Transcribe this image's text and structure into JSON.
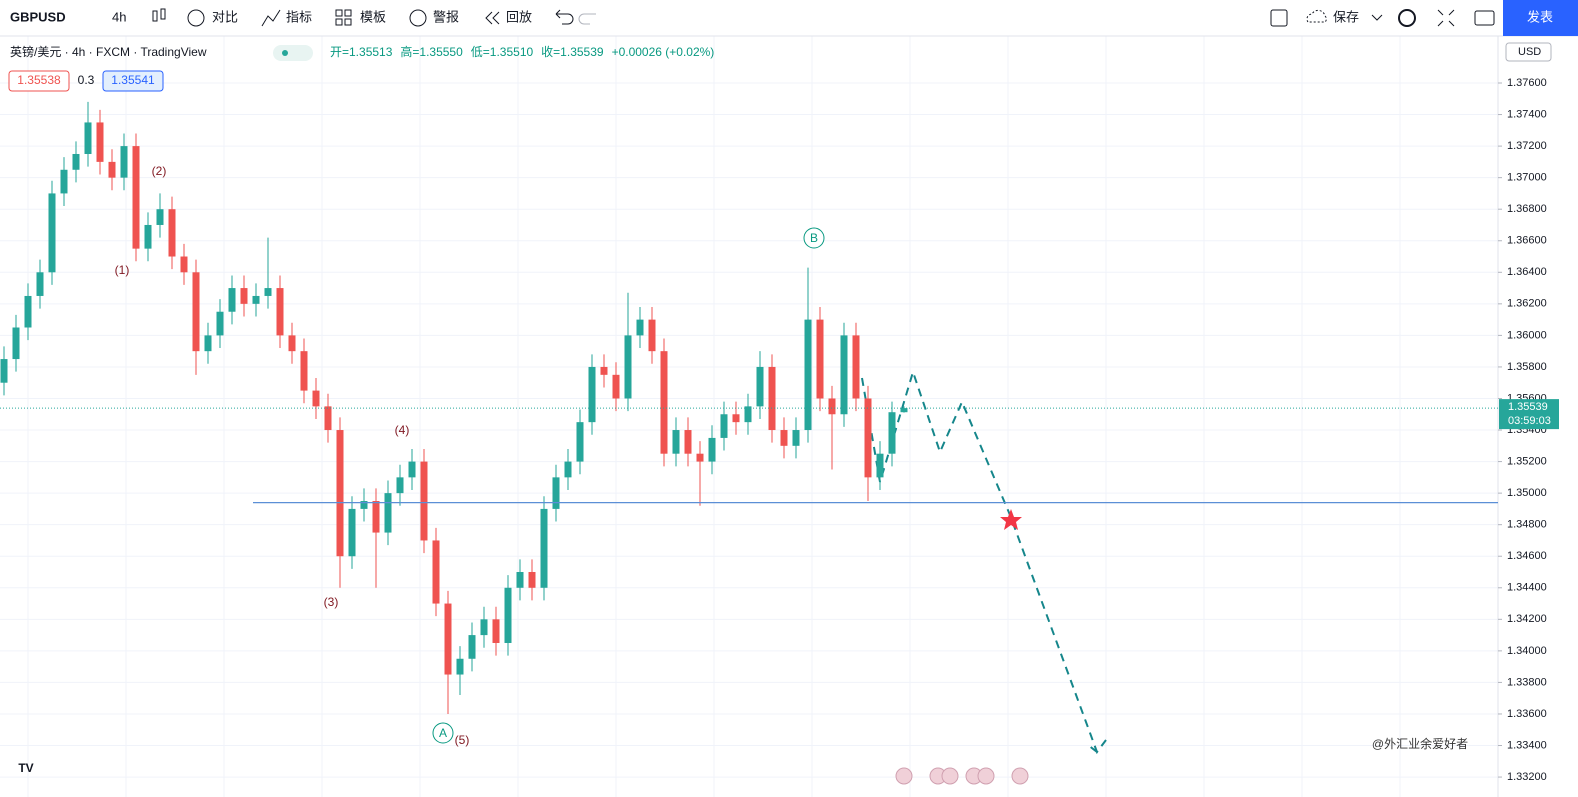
{
  "toolbar": {
    "symbol": "GBPUSD",
    "interval": "4h",
    "items": [
      "对比",
      "指标",
      "模板",
      "警报",
      "回放"
    ],
    "save": "保存",
    "publish": "发表"
  },
  "legend": {
    "symbol_info": "英镑/美元 · 4h · FXCM · TradingView",
    "ohlc": [
      "开=1.35513",
      "高=1.35550",
      "低=1.35510",
      "收=1.35539",
      "+0.00026 (+0.02%)"
    ],
    "bid": "1.35538",
    "spread": "0.3",
    "ask": "1.35541"
  },
  "axis": {
    "currency": "USD",
    "last_price": "1.35539",
    "countdown": "03:59:03"
  },
  "watermark": "@外汇业余爱好者",
  "logo": "TV",
  "chart_data": {
    "type": "candlestick",
    "categories": [
      null,
      null,
      null,
      null,
      null,
      null,
      null,
      null,
      null,
      null,
      null,
      null,
      null,
      null,
      null,
      null,
      null,
      null,
      null,
      null,
      null,
      null,
      null,
      null,
      null,
      null,
      null,
      null,
      null,
      null,
      null,
      null,
      null,
      null,
      null,
      null,
      null,
      null,
      null,
      null,
      null,
      null,
      null,
      null,
      null,
      null,
      null,
      null,
      null,
      null,
      null,
      null,
      null,
      null,
      null,
      null,
      null,
      null,
      null,
      null,
      null,
      null,
      null,
      null,
      null,
      null,
      null,
      null,
      null,
      null,
      null,
      null,
      null,
      null,
      null,
      null
    ],
    "open": [
      1.357,
      1.3585,
      1.3605,
      1.3625,
      1.364,
      1.369,
      1.3705,
      1.3715,
      1.3735,
      1.371,
      1.37,
      1.372,
      1.3655,
      1.367,
      1.368,
      1.365,
      1.364,
      1.359,
      1.36,
      1.3615,
      1.363,
      1.362,
      1.3625,
      1.363,
      1.36,
      1.359,
      1.3565,
      1.3555,
      1.354,
      1.346,
      1.349,
      1.3495,
      1.3475,
      1.35,
      1.351,
      1.352,
      1.347,
      1.343,
      1.3385,
      1.3395,
      1.341,
      1.342,
      1.3405,
      1.344,
      1.345,
      1.344,
      1.349,
      1.351,
      1.352,
      1.3545,
      1.358,
      1.3575,
      1.356,
      1.36,
      1.361,
      1.359,
      1.3525,
      1.354,
      1.3525,
      1.352,
      1.3535,
      1.355,
      1.3545,
      1.3555,
      1.358,
      1.354,
      1.353,
      1.354,
      1.361,
      1.356,
      1.355,
      1.36,
      1.356,
      1.351,
      1.3525,
      1.35513
    ],
    "high": [
      1.3593,
      1.3613,
      1.3633,
      1.3648,
      1.3698,
      1.3713,
      1.3723,
      1.3748,
      1.3743,
      1.3718,
      1.3728,
      1.3728,
      1.3678,
      1.369,
      1.3688,
      1.3658,
      1.3648,
      1.3608,
      1.3623,
      1.3638,
      1.3638,
      1.3633,
      1.3662,
      1.3638,
      1.3608,
      1.3598,
      1.3573,
      1.3563,
      1.3548,
      1.3498,
      1.3503,
      1.3503,
      1.3508,
      1.3518,
      1.3528,
      1.3528,
      1.3478,
      1.3438,
      1.3403,
      1.3418,
      1.3428,
      1.3428,
      1.3448,
      1.3458,
      1.3458,
      1.3498,
      1.3518,
      1.3528,
      1.3553,
      1.3588,
      1.3588,
      1.3583,
      1.3627,
      1.3618,
      1.3618,
      1.3598,
      1.3548,
      1.3548,
      1.3533,
      1.3543,
      1.3558,
      1.3558,
      1.3563,
      1.359,
      1.3588,
      1.3548,
      1.3548,
      1.3643,
      1.3618,
      1.3568,
      1.3608,
      1.3608,
      1.3568,
      1.3533,
      1.3558,
      1.3555
    ],
    "low": [
      1.3562,
      1.3577,
      1.3597,
      1.3617,
      1.3632,
      1.3682,
      1.3697,
      1.3707,
      1.3702,
      1.3692,
      1.3692,
      1.3647,
      1.3647,
      1.3662,
      1.3642,
      1.3632,
      1.3575,
      1.3582,
      1.3592,
      1.3607,
      1.3612,
      1.3612,
      1.3617,
      1.3592,
      1.3582,
      1.3557,
      1.3547,
      1.3532,
      1.344,
      1.3452,
      1.3482,
      1.344,
      1.3467,
      1.3492,
      1.3502,
      1.3462,
      1.3422,
      1.336,
      1.3372,
      1.3387,
      1.3402,
      1.3397,
      1.3397,
      1.3432,
      1.3432,
      1.3432,
      1.3482,
      1.3502,
      1.3512,
      1.3537,
      1.3567,
      1.3552,
      1.3552,
      1.3592,
      1.3582,
      1.3517,
      1.3517,
      1.3517,
      1.3492,
      1.3512,
      1.3527,
      1.3537,
      1.3537,
      1.3547,
      1.3532,
      1.3522,
      1.3522,
      1.3532,
      1.3552,
      1.3515,
      1.3542,
      1.3552,
      1.3495,
      1.3502,
      1.3517,
      1.3551
    ],
    "close": [
      1.3585,
      1.3605,
      1.3625,
      1.364,
      1.369,
      1.3705,
      1.3715,
      1.3735,
      1.371,
      1.37,
      1.372,
      1.3655,
      1.367,
      1.368,
      1.365,
      1.364,
      1.359,
      1.36,
      1.3615,
      1.363,
      1.362,
      1.3625,
      1.363,
      1.36,
      1.359,
      1.3565,
      1.3555,
      1.354,
      1.346,
      1.349,
      1.3495,
      1.3475,
      1.35,
      1.351,
      1.352,
      1.347,
      1.343,
      1.3385,
      1.3395,
      1.341,
      1.342,
      1.3405,
      1.344,
      1.345,
      1.344,
      1.349,
      1.351,
      1.352,
      1.3545,
      1.358,
      1.3575,
      1.356,
      1.36,
      1.361,
      1.359,
      1.3525,
      1.354,
      1.3525,
      1.352,
      1.3535,
      1.355,
      1.3545,
      1.3555,
      1.358,
      1.354,
      1.353,
      1.354,
      1.361,
      1.356,
      1.355,
      1.36,
      1.356,
      1.351,
      1.3525,
      1.35513,
      1.35539
    ],
    "up_color": "#26a69a",
    "down_color": "#ef5350",
    "ylim": [
      1.33118,
      1.37898
    ],
    "yticks": [
      {
        "value": 1.376,
        "label": "1.37600"
      },
      {
        "value": 1.374,
        "label": "1.37400"
      },
      {
        "value": 1.372,
        "label": "1.37200"
      },
      {
        "value": 1.37,
        "label": "1.37000"
      },
      {
        "value": 1.368,
        "label": "1.36800"
      },
      {
        "value": 1.366,
        "label": "1.36600"
      },
      {
        "value": 1.364,
        "label": "1.36400"
      },
      {
        "value": 1.362,
        "label": "1.36200"
      },
      {
        "value": 1.36,
        "label": "1.36000"
      },
      {
        "value": 1.358,
        "label": "1.35800"
      },
      {
        "value": 1.356,
        "label": "1.35600"
      },
      {
        "value": 1.354,
        "label": "1.35400"
      },
      {
        "value": 1.352,
        "label": "1.35200"
      },
      {
        "value": 1.35,
        "label": "1.35000"
      },
      {
        "value": 1.348,
        "label": "1.34800"
      },
      {
        "value": 1.346,
        "label": "1.34600"
      },
      {
        "value": 1.344,
        "label": "1.34400"
      },
      {
        "value": 1.342,
        "label": "1.34200"
      },
      {
        "value": 1.34,
        "label": "1.34000"
      },
      {
        "value": 1.338,
        "label": "1.33800"
      },
      {
        "value": 1.336,
        "label": "1.33600"
      },
      {
        "value": 1.334,
        "label": "1.33400"
      },
      {
        "value": 1.332,
        "label": "1.33200"
      }
    ],
    "grid": true,
    "horizontal_line": 1.3494,
    "last_price": 1.35539,
    "wave_labels": [
      "(1)",
      "(2)",
      "(3)",
      "(4)",
      "(5)",
      "A",
      "B"
    ]
  }
}
